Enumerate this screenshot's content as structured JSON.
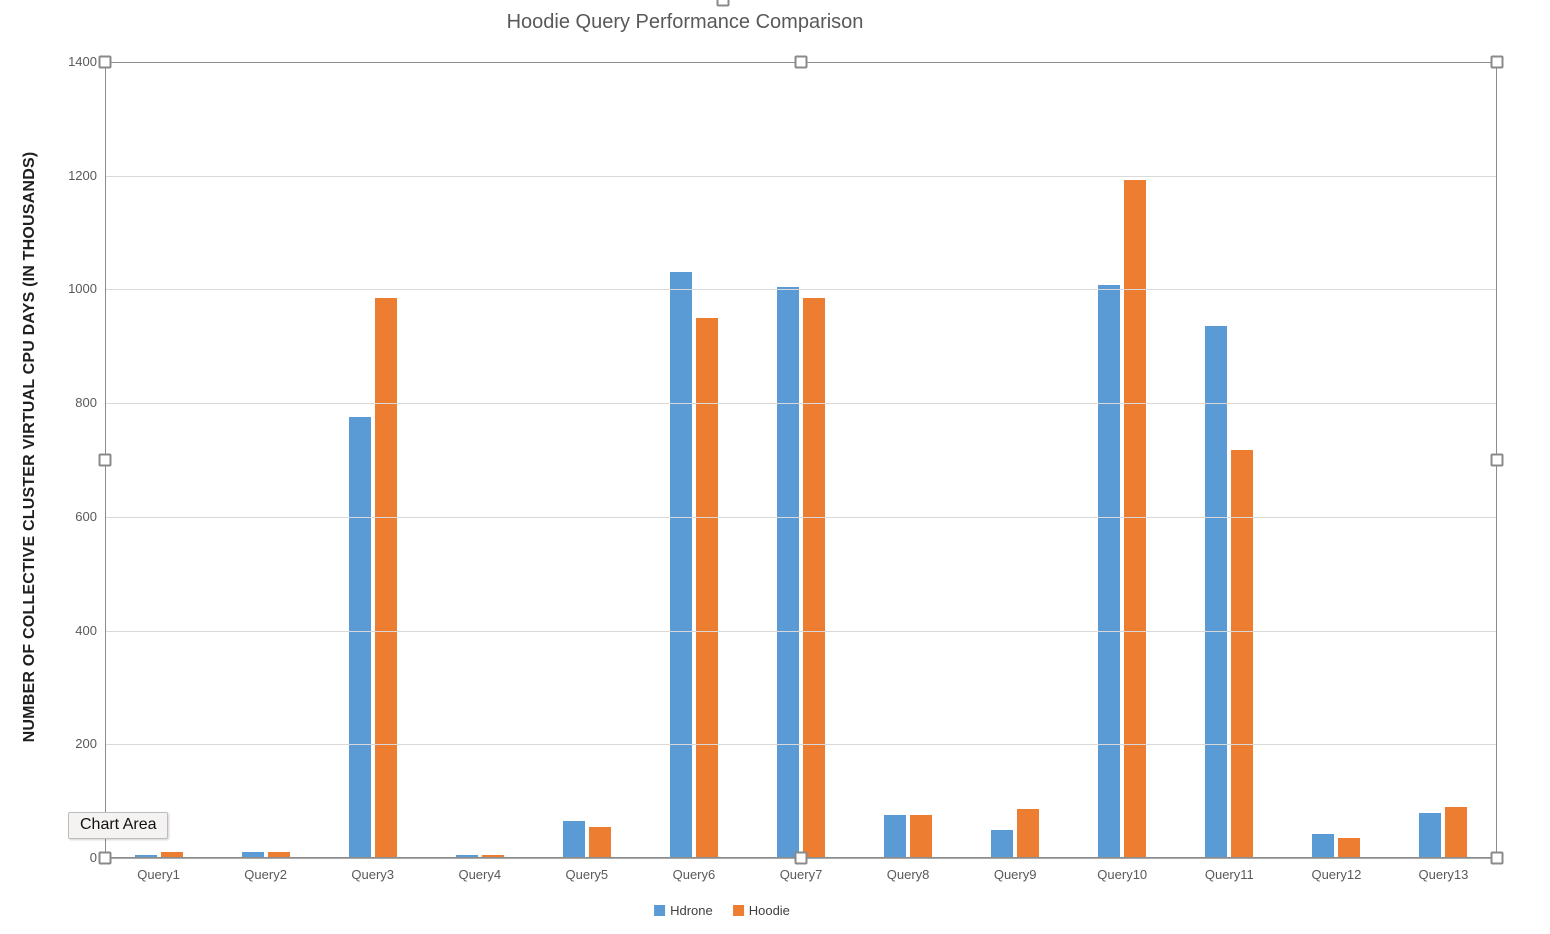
{
  "chart_title": "Hoodie Query Performance Comparison",
  "tooltip": {
    "label": "Chart Area"
  },
  "colors": {
    "hdrone_blue": "#5B9BD5",
    "hoodie_orange": "#ED7D31",
    "gridline": "#D9D9D9",
    "axis_text": "#595959",
    "title_text": "#595959"
  },
  "chart_data": {
    "type": "bar",
    "title": "Hoodie Query Performance Comparison",
    "xlabel": "",
    "ylabel": "NUMBER OF COLLECTIVE CLUSTER VIRTUAL CPU DAYS (IN THOUSANDS)",
    "categories": [
      "Query1",
      "Query2",
      "Query3",
      "Query4",
      "Query5",
      "Query6",
      "Query7",
      "Query8",
      "Query9",
      "Query10",
      "Query11",
      "Query12",
      "Query13"
    ],
    "series": [
      {
        "name": "Hdrone",
        "color": "#5B9BD5",
        "values": [
          5,
          10,
          775,
          5,
          65,
          1030,
          1005,
          76,
          50,
          1008,
          935,
          43,
          80
        ]
      },
      {
        "name": "Hoodie",
        "color": "#ED7D31",
        "values": [
          10,
          10,
          985,
          5,
          55,
          950,
          985,
          75,
          87,
          1193,
          718,
          35,
          90
        ]
      }
    ],
    "ylim": [
      0,
      1400
    ],
    "ytick_step": 200,
    "ytick_labels": [
      "0",
      "200",
      "400",
      "600",
      "800",
      "1000",
      "1200",
      "1400"
    ],
    "grid": "horizontal",
    "legend_position": "bottom"
  }
}
